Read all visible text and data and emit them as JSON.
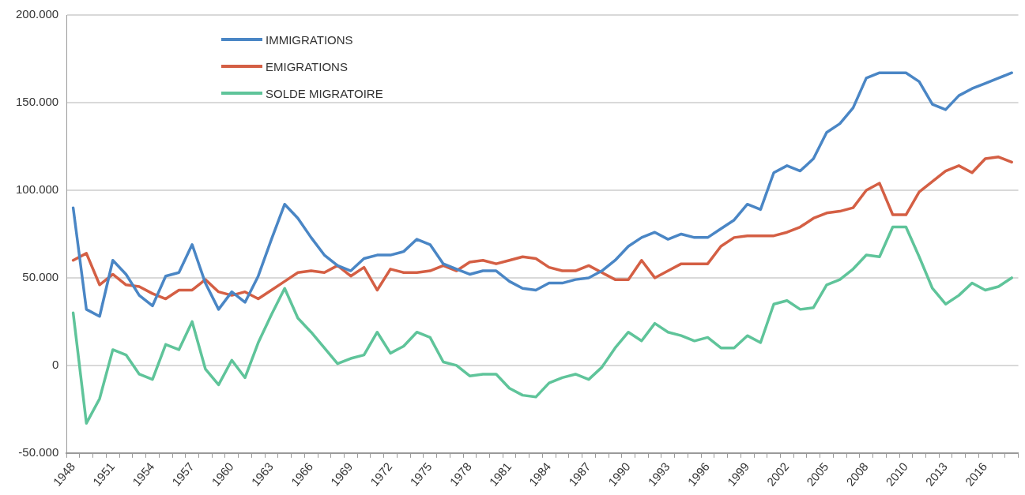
{
  "chart_data": {
    "type": "line",
    "categories": [
      "1948",
      null,
      null,
      "1951",
      null,
      null,
      "1954",
      null,
      null,
      "1957",
      null,
      null,
      "1960",
      null,
      null,
      "1963",
      null,
      null,
      "1966",
      null,
      null,
      "1969",
      null,
      null,
      "1972",
      null,
      null,
      "1975",
      null,
      null,
      "1978",
      null,
      null,
      "1981",
      null,
      null,
      "1984",
      null,
      null,
      "1987",
      null,
      null,
      "1990",
      null,
      null,
      "1993",
      null,
      null,
      "1996",
      null,
      null,
      "1999",
      null,
      null,
      "2002",
      null,
      null,
      "2005",
      null,
      null,
      "2008",
      null,
      null,
      "2010",
      null,
      null,
      "2013",
      null,
      null,
      "2016",
      null,
      null
    ],
    "series": [
      {
        "name": "IMMIGRATIONS",
        "color": "#4a86c5",
        "values": [
          90000,
          32000,
          28000,
          60000,
          52000,
          40000,
          34000,
          51000,
          53000,
          69000,
          47000,
          32000,
          42000,
          36000,
          51000,
          72000,
          92000,
          84000,
          73000,
          63000,
          57000,
          54000,
          61000,
          63000,
          63000,
          65000,
          72000,
          69000,
          58000,
          55000,
          52000,
          54000,
          54000,
          48000,
          44000,
          43000,
          47000,
          47000,
          49000,
          50000,
          54000,
          60000,
          68000,
          73000,
          76000,
          72000,
          75000,
          73000,
          73000,
          78000,
          83000,
          92000,
          89000,
          110000,
          114000,
          111000,
          118000,
          133000,
          138000,
          147000,
          164000,
          167000,
          167000,
          167000,
          162000,
          149000,
          146000,
          154000,
          158000,
          161000,
          164000,
          167000
        ]
      },
      {
        "name": "EMIGRATIONS",
        "color": "#d45f44",
        "values": [
          60000,
          64000,
          46000,
          52000,
          46000,
          45000,
          41000,
          38000,
          43000,
          43000,
          49000,
          42000,
          40000,
          42000,
          38000,
          43000,
          48000,
          53000,
          54000,
          53000,
          57000,
          51000,
          56000,
          43000,
          55000,
          53000,
          53000,
          54000,
          57000,
          54000,
          59000,
          60000,
          58000,
          60000,
          62000,
          61000,
          56000,
          54000,
          54000,
          57000,
          53000,
          49000,
          49000,
          60000,
          50000,
          54000,
          58000,
          58000,
          58000,
          68000,
          73000,
          74000,
          74000,
          74000,
          76000,
          79000,
          84000,
          87000,
          88000,
          90000,
          100000,
          104000,
          86000,
          86000,
          99000,
          105000,
          111000,
          114000,
          110000,
          118000,
          119000,
          116000
        ]
      },
      {
        "name": "SOLDE MIGRATOIRE",
        "color": "#5fc49a",
        "values": [
          30000,
          -33000,
          -19000,
          9000,
          6000,
          -5000,
          -8000,
          12000,
          9000,
          25000,
          -2000,
          -11000,
          3000,
          -7000,
          13000,
          29000,
          44000,
          27000,
          19000,
          10000,
          1000,
          4000,
          6000,
          19000,
          7000,
          11000,
          19000,
          16000,
          2000,
          0,
          -6000,
          -5000,
          -5000,
          -13000,
          -17000,
          -18000,
          -10000,
          -7000,
          -5000,
          -8000,
          -1000,
          10000,
          19000,
          14000,
          24000,
          19000,
          17000,
          14000,
          16000,
          10000,
          10000,
          17000,
          13000,
          35000,
          37000,
          32000,
          33000,
          46000,
          49000,
          55000,
          63000,
          62000,
          79000,
          79000,
          62000,
          44000,
          35000,
          40000,
          47000,
          43000,
          45000,
          50000
        ]
      }
    ],
    "ylim": [
      -50000,
      200000
    ],
    "yticks": [
      {
        "value": -50000,
        "label": "-50.000"
      },
      {
        "value": 0,
        "label": "0"
      },
      {
        "value": 50000,
        "label": "50.000"
      },
      {
        "value": 100000,
        "label": "100.000"
      },
      {
        "value": 150000,
        "label": "150.000"
      },
      {
        "value": 200000,
        "label": "200.000"
      }
    ],
    "grid": "y",
    "legend": "top left",
    "marker": "none",
    "line_style": "solid"
  }
}
